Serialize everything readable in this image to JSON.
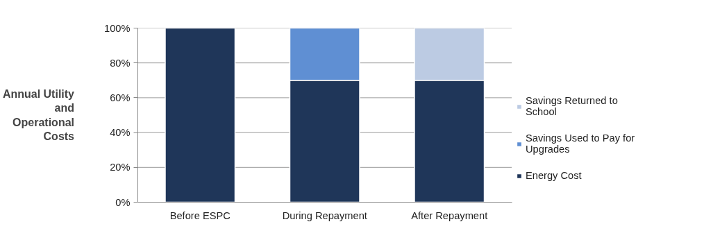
{
  "chart_data": {
    "type": "bar",
    "stacked": true,
    "ylabel": "Annual Utility and Operational Costs",
    "categories": [
      "Before ESPC",
      "During Repayment",
      "After Repayment"
    ],
    "series": [
      {
        "name": "Energy Cost",
        "color": "#1f3659",
        "values": [
          100,
          70,
          70
        ]
      },
      {
        "name": "Savings Used to Pay for Upgrades",
        "color": "#5f8fd3",
        "values": [
          0,
          30,
          0
        ]
      },
      {
        "name": "Savings Returned to School",
        "color": "#bccbe3",
        "values": [
          0,
          0,
          30
        ]
      }
    ],
    "ylim": [
      0,
      100
    ],
    "yticks": [
      {
        "value": 0,
        "label": "0%"
      },
      {
        "value": 20,
        "label": "20%"
      },
      {
        "value": 40,
        "label": "40%"
      },
      {
        "value": 60,
        "label": "60%"
      },
      {
        "value": 80,
        "label": "80%"
      },
      {
        "value": 100,
        "label": "100%"
      }
    ],
    "grid": "y",
    "legend": "right"
  }
}
